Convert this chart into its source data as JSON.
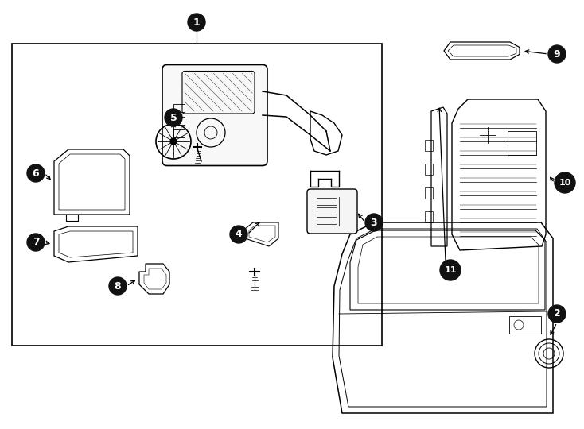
{
  "background_color": "#ffffff",
  "line_color": "#000000",
  "fig_width": 7.34,
  "fig_height": 5.4,
  "dpi": 100
}
